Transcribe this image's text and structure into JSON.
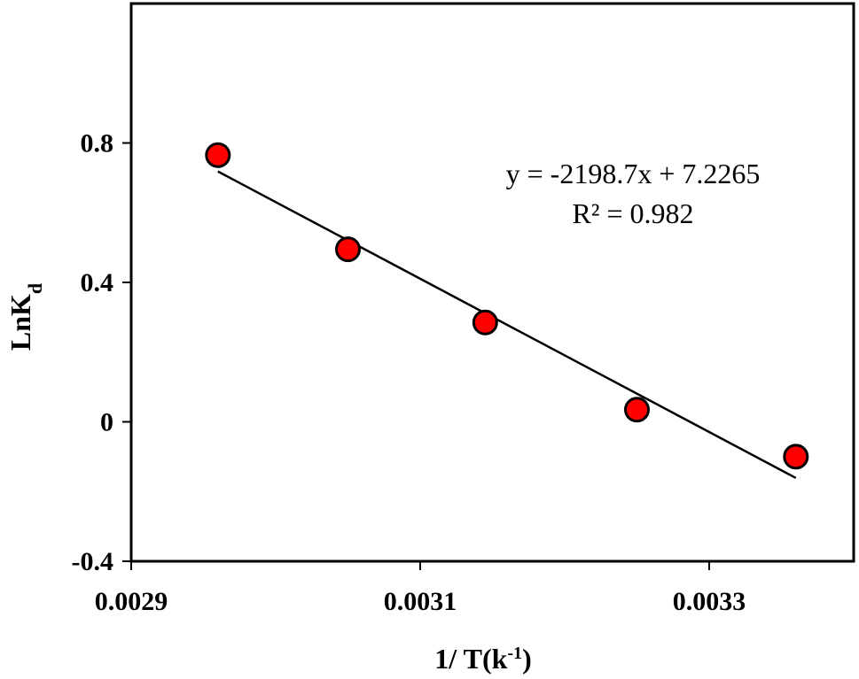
{
  "chart_data": {
    "type": "scatter",
    "title": "",
    "xlabel_main": "1/ T(k",
    "xlabel_sup": "-1",
    "xlabel_end": ")",
    "ylabel_main": "LnK",
    "ylabel_sub": "d",
    "xlim": [
      0.0029,
      0.0034
    ],
    "ylim": [
      -0.4,
      1.2
    ],
    "x_ticks": [
      {
        "value": 0.0029,
        "label": "0.0029"
      },
      {
        "value": 0.0031,
        "label": "0.0031"
      },
      {
        "value": 0.0033,
        "label": "0.0033"
      }
    ],
    "y_ticks": [
      {
        "value": -0.4,
        "label": "-0.4"
      },
      {
        "value": 0,
        "label": "0"
      },
      {
        "value": 0.4,
        "label": "0.4"
      },
      {
        "value": 0.8,
        "label": "0.8"
      }
    ],
    "grid": false,
    "points": [
      {
        "x": 0.00296,
        "y": 0.765
      },
      {
        "x": 0.00305,
        "y": 0.495
      },
      {
        "x": 0.003145,
        "y": 0.285
      },
      {
        "x": 0.00325,
        "y": 0.035
      },
      {
        "x": 0.00336,
        "y": -0.1
      }
    ],
    "marker_color": "#ff0000",
    "marker_edge": "#000000",
    "trendline": {
      "slope": -2198.7,
      "intercept": 7.2265,
      "x_start": 0.00296,
      "x_end": 0.00336
    },
    "equation": "y = -2198.7x + 7.2265",
    "r_squared": "R² = 0.982"
  }
}
